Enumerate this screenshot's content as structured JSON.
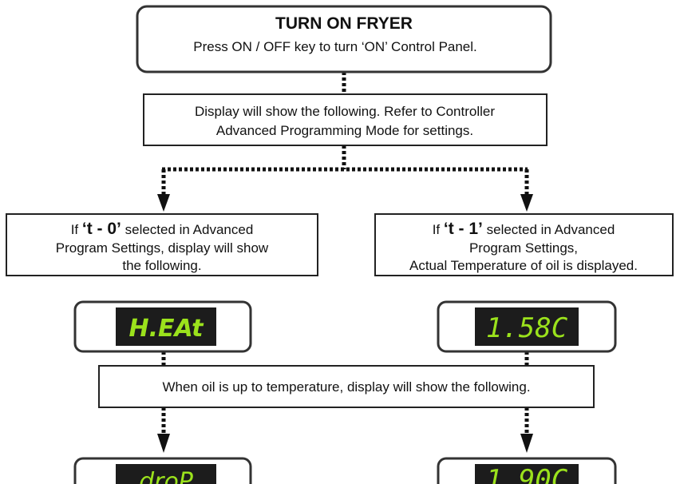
{
  "nodes": [
    {
      "title": "TURN ON FRYER",
      "text": "Press ON / OFF key to turn ‘ON’ Control Panel."
    },
    {
      "lines": [
        "Display will show the following.  Refer to Controller",
        "Advanced Programming Mode for settings."
      ]
    },
    {
      "prefix": "If ",
      "code": "‘t - 0’",
      "suffix": " selected in Advanced",
      "lines": [
        "Program Settings,  display will show",
        "the following."
      ]
    },
    {
      "prefix": "If ",
      "code": "‘t - 1’",
      "suffix": " selected in Advanced",
      "lines": [
        "Program Settings,",
        "Actual Temperature of oil is displayed."
      ]
    },
    {
      "display": "H.EAt"
    },
    {
      "display": "1.58C"
    },
    {
      "lines": [
        "When oil is up to temperature, display will show the following."
      ]
    },
    {
      "display": "droP"
    },
    {
      "display": "1.90C"
    }
  ]
}
